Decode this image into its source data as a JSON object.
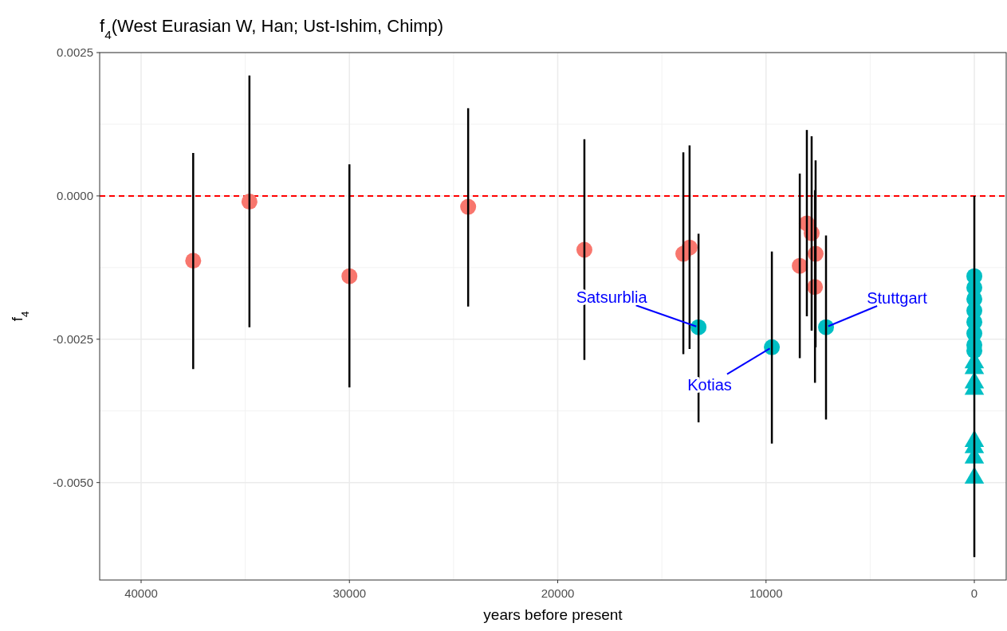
{
  "chart_data": {
    "type": "scatter",
    "title": "f$_{4}$(West Eurasian W, Han; Ust-Ishim, Chimp)",
    "xlabel": "years before present",
    "ylabel": "f$_{4}$",
    "xlim": [
      41990,
      -1530
    ],
    "ylim": [
      -0.0067,
      0.0025
    ],
    "xticks": [
      40000,
      30000,
      20000,
      10000,
      0
    ],
    "yticks": [
      0.0025,
      {
        "value": 0,
        "label": "0.0000"
      },
      -0.0025,
      {
        "value": -0.005,
        "label": "-0.0050"
      }
    ],
    "grid": true,
    "ref_lines": [
      {
        "axis": "y",
        "value": 0,
        "color": "#ff0000",
        "line_style": "dashed"
      }
    ],
    "annotations": [
      {
        "text": "Satsurblia",
        "x": 13240,
        "y": -0.00229
      },
      {
        "text": "Kotias",
        "x": 9720,
        "y": -0.00264
      },
      {
        "text": "Stuttgart",
        "x": 7120,
        "y": -0.00229
      }
    ],
    "series": [
      {
        "color": "#f8766d",
        "marker": "circle",
        "x": [
          37500,
          34800,
          30000,
          24300,
          18720,
          13970,
          13670,
          8380,
          8040,
          7810,
          7620,
          7650
        ],
        "values": [
          -0.00113,
          -0.0001,
          -0.0014,
          -0.00019,
          -0.00094,
          -0.00101,
          -0.0009,
          -0.00122,
          -0.00048,
          -0.00065,
          -0.00101,
          -0.00159
        ],
        "errors": [
          [
            -0.00302,
            0.00075
          ],
          [
            -0.00229,
            0.0021
          ],
          [
            -0.00334,
            0.00055
          ],
          [
            -0.00193,
            0.00153
          ],
          [
            -0.00286,
            0.00099
          ],
          [
            -0.00276,
            0.00076
          ],
          [
            -0.00267,
            0.00088
          ],
          [
            -0.00283,
            0.00039
          ],
          [
            -0.0021,
            0.00115
          ],
          [
            -0.00235,
            0.00104
          ],
          [
            -0.00264,
            0.00062
          ],
          [
            -0.00326,
            0.0001
          ]
        ]
      },
      {
        "color": "#00bfc4",
        "marker": "circle",
        "x": [
          13240,
          9720,
          7120,
          0,
          0,
          0,
          0,
          0,
          0,
          0,
          0
        ],
        "values": [
          -0.00229,
          -0.00264,
          -0.00229,
          -0.0014,
          -0.0016,
          -0.0018,
          -0.002,
          -0.0022,
          -0.0024,
          -0.0026,
          -0.0027
        ],
        "errors": [
          [
            -0.00395,
            -0.00066
          ],
          [
            -0.00432,
            -0.00097
          ],
          [
            -0.0039,
            -0.00069
          ],
          null,
          null,
          null,
          null,
          null,
          null,
          null,
          null
        ]
      },
      {
        "color": "#00bfc4",
        "marker": "triangle",
        "x": [
          0,
          0,
          0,
          0,
          0,
          0,
          0,
          0
        ],
        "values": [
          -0.00291,
          -0.00301,
          -0.00326,
          -0.00337,
          -0.00428,
          -0.00439,
          -0.00457,
          -0.00492
        ],
        "errors": [
          null,
          null,
          [
            -0.0063,
            0
          ],
          null,
          null,
          null,
          null,
          null
        ]
      }
    ]
  }
}
